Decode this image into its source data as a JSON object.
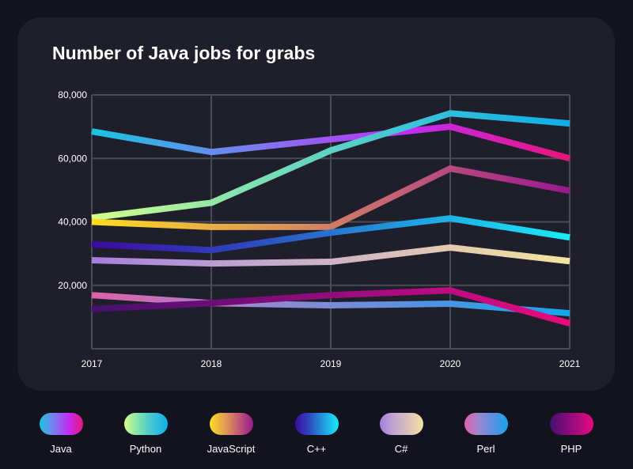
{
  "chart_data": {
    "type": "line",
    "title": "Number of Java jobs for grabs",
    "x": [
      "2017",
      "2018",
      "2019",
      "2020",
      "2021"
    ],
    "ylim": [
      0,
      80000
    ],
    "yticks": [
      20000,
      40000,
      60000,
      80000
    ],
    "ytick_labels": [
      "20,000",
      "40,000",
      "60,000",
      "80,000"
    ],
    "grid": true,
    "legend": "bottom",
    "series": [
      {
        "name": "Java",
        "values": [
          68500,
          62000,
          66000,
          70000,
          60000
        ],
        "colors": [
          "#17c6e0",
          "#7b7cf0",
          "#c22cf5",
          "#e8157a"
        ]
      },
      {
        "name": "Python",
        "values": [
          41300,
          46000,
          62500,
          74200,
          71000
        ],
        "colors": [
          "#d6ff8a",
          "#7fe0b0",
          "#3cc4d8",
          "#0eaee8"
        ]
      },
      {
        "name": "JavaScript",
        "values": [
          40000,
          38400,
          38400,
          56800,
          49800
        ],
        "colors": [
          "#ffdc1e",
          "#e2a050",
          "#c05a78",
          "#9a1890"
        ]
      },
      {
        "name": "C++",
        "values": [
          32900,
          31100,
          36600,
          41100,
          35100
        ],
        "colors": [
          "#3a0aa0",
          "#2e4ac0",
          "#20a0e0",
          "#18ecf8"
        ]
      },
      {
        "name": "C#",
        "values": [
          27900,
          26900,
          27400,
          31900,
          27600
        ],
        "colors": [
          "#a57fdc",
          "#c2a6d0",
          "#dcc2b8",
          "#f4e49c"
        ]
      },
      {
        "name": "Perl",
        "values": [
          16900,
          14400,
          13700,
          14200,
          11200
        ],
        "colors": [
          "#e060a8",
          "#9a88d0",
          "#5a90e0",
          "#10a8ec"
        ]
      },
      {
        "name": "PHP",
        "values": [
          12500,
          14400,
          16900,
          18400,
          8000
        ],
        "colors": [
          "#45106e",
          "#7a0c78",
          "#b00c80",
          "#ea0a80"
        ]
      }
    ]
  }
}
